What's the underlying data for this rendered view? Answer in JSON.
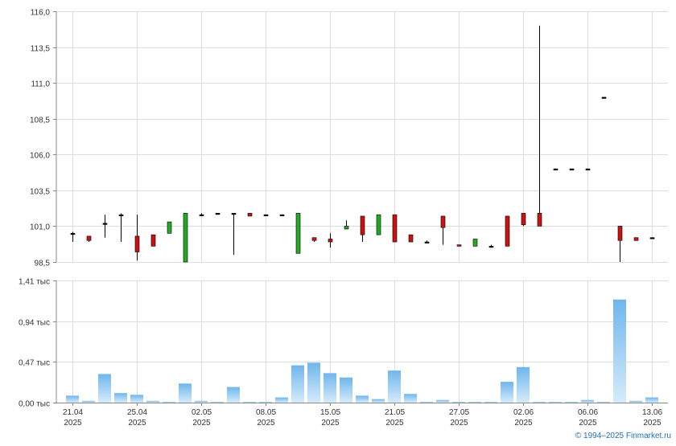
{
  "copyright": "© 1994–2025 Finmarket.ru",
  "colors": {
    "up": "#22aa22",
    "down": "#cc1111",
    "wick": "#000000",
    "volume_top": "#6fb6ec",
    "volume_bottom": "#d6ebfa",
    "grid": "#dddddd",
    "axis": "#888888"
  },
  "chart_data": [
    {
      "type": "candlestick",
      "ylim": [
        98.5,
        116.0
      ],
      "y_ticks": [
        "116,0",
        "113,5",
        "111,0",
        "108,5",
        "106,0",
        "103,5",
        "101,0",
        "98,5"
      ],
      "y_tick_values": [
        116.0,
        113.5,
        111.0,
        108.5,
        106.0,
        103.5,
        101.0,
        98.5
      ],
      "grid": true,
      "candles": [
        {
          "x": "21.04",
          "open": 100.5,
          "high": 100.6,
          "low": 99.9,
          "close": 100.5
        },
        {
          "x": "22.04",
          "open": 100.3,
          "high": 100.3,
          "low": 99.9,
          "close": 100.0
        },
        {
          "x": "23.04",
          "open": 101.2,
          "high": 101.8,
          "low": 100.2,
          "close": 101.2
        },
        {
          "x": "24.04",
          "open": 101.8,
          "high": 101.9,
          "low": 99.9,
          "close": 101.8
        },
        {
          "x": "25.04",
          "open": 100.3,
          "high": 101.8,
          "low": 98.6,
          "close": 99.2
        },
        {
          "x": "28.04",
          "open": 100.4,
          "high": 100.4,
          "low": 99.6,
          "close": 99.6
        },
        {
          "x": "29.04",
          "open": 100.5,
          "high": 101.3,
          "low": 100.5,
          "close": 101.3
        },
        {
          "x": "30.04",
          "open": 98.5,
          "high": 101.9,
          "low": 98.5,
          "close": 101.9
        },
        {
          "x": "02.05",
          "open": 101.8,
          "high": 101.9,
          "low": 101.8,
          "close": 101.8
        },
        {
          "x": "05.05",
          "open": 101.9,
          "high": 101.9,
          "low": 101.8,
          "close": 101.9
        },
        {
          "x": "06.05",
          "open": 101.9,
          "high": 101.9,
          "low": 99.0,
          "close": 101.9
        },
        {
          "x": "07.05",
          "open": 101.9,
          "high": 101.9,
          "low": 101.7,
          "close": 101.7
        },
        {
          "x": "08.05",
          "open": 101.8,
          "high": 101.8,
          "low": 101.7,
          "close": 101.8
        },
        {
          "x": "12.05",
          "open": 101.8,
          "high": 101.8,
          "low": 101.7,
          "close": 101.8
        },
        {
          "x": "13.05",
          "open": 99.1,
          "high": 101.9,
          "low": 99.1,
          "close": 101.9
        },
        {
          "x": "14.05",
          "open": 100.2,
          "high": 100.2,
          "low": 99.9,
          "close": 100.0
        },
        {
          "x": "15.05",
          "open": 100.1,
          "high": 100.5,
          "low": 99.5,
          "close": 99.9
        },
        {
          "x": "16.05",
          "open": 100.8,
          "high": 101.4,
          "low": 100.8,
          "close": 101.0
        },
        {
          "x": "19.05",
          "open": 101.7,
          "high": 101.7,
          "low": 99.9,
          "close": 100.4
        },
        {
          "x": "20.05",
          "open": 100.4,
          "high": 101.8,
          "low": 100.4,
          "close": 101.8
        },
        {
          "x": "21.05",
          "open": 101.8,
          "high": 101.8,
          "low": 99.9,
          "close": 99.9
        },
        {
          "x": "22.05",
          "open": 100.4,
          "high": 100.4,
          "low": 99.9,
          "close": 99.9
        },
        {
          "x": "23.05",
          "open": 99.9,
          "high": 100.0,
          "low": 99.9,
          "close": 99.9
        },
        {
          "x": "26.05",
          "open": 101.7,
          "high": 101.7,
          "low": 99.7,
          "close": 100.9
        },
        {
          "x": "27.05",
          "open": 99.7,
          "high": 99.7,
          "low": 99.6,
          "close": 99.6
        },
        {
          "x": "28.05",
          "open": 99.6,
          "high": 100.1,
          "low": 99.6,
          "close": 100.1
        },
        {
          "x": "29.05",
          "open": 99.6,
          "high": 99.7,
          "low": 99.6,
          "close": 99.6
        },
        {
          "x": "30.05",
          "open": 101.7,
          "high": 101.7,
          "low": 99.6,
          "close": 99.6
        },
        {
          "x": "02.06",
          "open": 101.9,
          "high": 101.9,
          "low": 101.0,
          "close": 101.1
        },
        {
          "x": "03.06",
          "open": 101.9,
          "high": 115.0,
          "low": 101.0,
          "close": 101.0
        },
        {
          "x": "04.06",
          "open": 105.0,
          "high": 105.0,
          "low": 105.0,
          "close": 105.0
        },
        {
          "x": "05.06",
          "open": 105.0,
          "high": 105.0,
          "low": 105.0,
          "close": 105.0
        },
        {
          "x": "06.06",
          "open": 105.0,
          "high": 105.0,
          "low": 105.0,
          "close": 105.0
        },
        {
          "x": "09.06",
          "open": 110.0,
          "high": 110.0,
          "low": 110.0,
          "close": 110.0
        },
        {
          "x": "10.06",
          "open": 101.0,
          "high": 101.0,
          "low": 98.5,
          "close": 100.0
        },
        {
          "x": "11.06",
          "open": 100.2,
          "high": 100.2,
          "low": 100.0,
          "close": 100.0
        },
        {
          "x": "13.06",
          "open": 100.2,
          "high": 100.2,
          "low": 100.1,
          "close": 100.2
        }
      ]
    },
    {
      "type": "bar",
      "ylim": [
        0,
        1.41
      ],
      "y_ticks": [
        "1,41 тыс",
        "0,94 тыс",
        "0,47 тыс",
        "0,00 тыс"
      ],
      "y_tick_values": [
        1.41,
        0.94,
        0.47,
        0.0
      ],
      "grid": true,
      "x_tick_labels": [
        {
          "day": "21.04",
          "year": "2025"
        },
        {
          "day": "25.04",
          "year": "2025"
        },
        {
          "day": "02.05",
          "year": "2025"
        },
        {
          "day": "08.05",
          "year": "2025"
        },
        {
          "day": "15.05",
          "year": "2025"
        },
        {
          "day": "21.05",
          "year": "2025"
        },
        {
          "day": "27.05",
          "year": "2025"
        },
        {
          "day": "02.06",
          "year": "2025"
        },
        {
          "day": "06.06",
          "year": "2025"
        },
        {
          "day": "13.06",
          "year": "2025"
        }
      ],
      "x_tick_slots": [
        0,
        4,
        8,
        12,
        16,
        20,
        24,
        28,
        32,
        36
      ],
      "values": [
        0.08,
        0.02,
        0.33,
        0.11,
        0.09,
        0.02,
        0.01,
        0.22,
        0.02,
        0.01,
        0.18,
        0.01,
        0.01,
        0.06,
        0.43,
        0.46,
        0.34,
        0.29,
        0.08,
        0.04,
        0.37,
        0.1,
        0.01,
        0.03,
        0.01,
        0.01,
        0.01,
        0.24,
        0.41,
        0.01,
        0.01,
        0.01,
        0.03,
        0.01,
        1.19,
        0.02,
        0.06
      ]
    }
  ]
}
